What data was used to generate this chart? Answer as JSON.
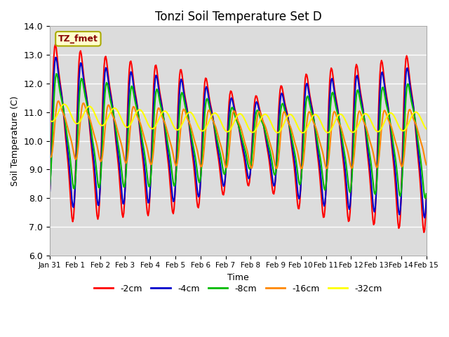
{
  "title": "Tonzi Soil Temperature Set D",
  "xlabel": "Time",
  "ylabel": "Soil Temperature (C)",
  "ylim": [
    6.0,
    14.0
  ],
  "yticks": [
    6.0,
    7.0,
    8.0,
    9.0,
    10.0,
    11.0,
    12.0,
    13.0,
    14.0
  ],
  "xtick_labels": [
    "Jan 31",
    "Feb 1",
    "Feb 2",
    "Feb 3",
    "Feb 4",
    "Feb 5",
    "Feb 6",
    "Feb 7",
    "Feb 8",
    "Feb 9",
    "Feb 10",
    "Feb 11",
    "Feb 12",
    "Feb 13",
    "Feb 14",
    "Feb 15"
  ],
  "legend_label": "TZ_fmet",
  "series_labels": [
    "-2cm",
    "-4cm",
    "-8cm",
    "-16cm",
    "-32cm"
  ],
  "series_colors": [
    "#ff0000",
    "#0000cc",
    "#00bb00",
    "#ff8800",
    "#ffff00"
  ],
  "line_widths": [
    1.5,
    1.5,
    1.5,
    1.5,
    1.5
  ],
  "bg_color": "#dcdcdc",
  "n_points": 480,
  "time_days": 15.0
}
